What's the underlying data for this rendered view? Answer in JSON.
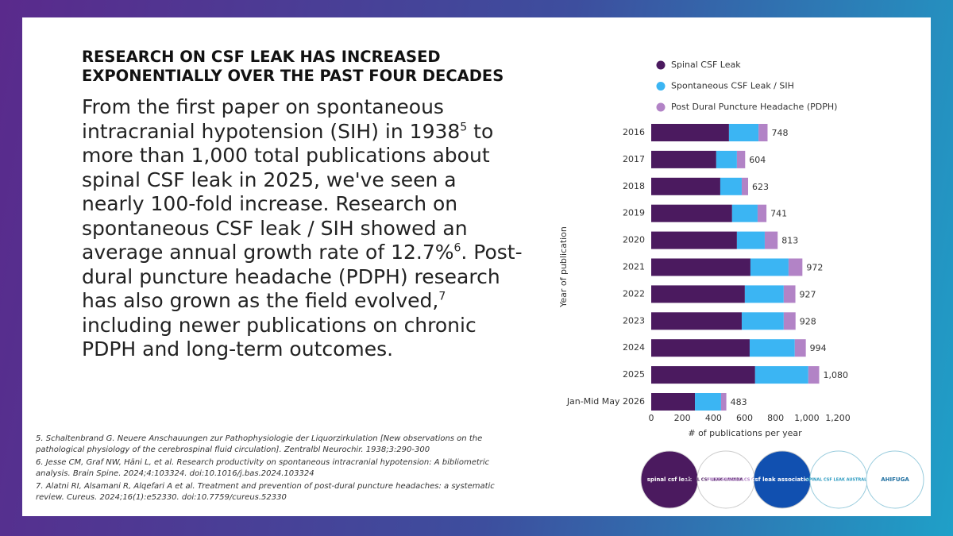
{
  "header": {
    "title": "RESEARCH ON CSF LEAK HAS INCREASED EXPONENTIALLY OVER THE PAST FOUR DECADES"
  },
  "body": [
    "From the first paper on spontaneous intracranial hypotension (SIH) in 1938",
    "5",
    " to more than 1,000 total publications about spinal CSF leak in 2025, we've seen a nearly 100-fold increase. Research on spontaneous CSF leak / SIH showed an average annual growth rate of 12.7%",
    "6",
    ". Post-dural puncture headache (PDPH) research has also grown as the field evolved,",
    "7",
    " including newer publications on chronic PDPH and long-term outcomes."
  ],
  "footnotes": [
    "5. Schaltenbrand G. Neuere Anschauungen zur Pathophysiologie der Liquorzirkulation [New observations on the pathological physiology of the cerebrospinal fluid circulation]. Zentralbl Neurochir. 1938;3:290-300",
    "6. Jesse CM, Graf NW, Häni L, et al. Research productivity on spontaneous intracranial hypotension: A bibliometric analysis. Brain Spine. 2024;4:103324. doi:10.1016/j.bas.2024.103324",
    "7. Alatni RI, Alsamani R, Alqefari A et al. Treatment and prevention of post-dural puncture headaches: a systematic review. Cureus. 2024;16(1):e52330. doi:10.7759/cureus.52330"
  ],
  "logos": [
    "spinal csf leak",
    "SPINAL CSF LEAK CANADA",
    "FUITE SPINALE LCS CANADA",
    "csf leak association",
    "SPINAL CSF LEAK AUSTRALIA",
    "AHIFUGA"
  ],
  "chart_data": {
    "type": "stacked-bar-horizontal",
    "x_label": "# of publications per year",
    "y_label": "Year of publication",
    "categories": [
      "2016",
      "2017",
      "2018",
      "2019",
      "2020",
      "2021",
      "2022",
      "2023",
      "2024",
      "2025",
      "Jan-Mid May 2026"
    ],
    "series": [
      {
        "name": "Spinal CSF Leak",
        "color": "#4b1a5f",
        "values": [
          500,
          418,
          444,
          520,
          551,
          638,
          602,
          582,
          633,
          668,
          281
        ]
      },
      {
        "name": "Spontaneous CSF Leak / SIH",
        "color": "#3bb5f3",
        "values": [
          190,
          133,
          138,
          164,
          179,
          245,
          250,
          270,
          290,
          342,
          168
        ]
      },
      {
        "name": "Post Dural Puncture Headache (PDPH)",
        "color": "#b283c6",
        "values": [
          58,
          53,
          41,
          57,
          83,
          89,
          75,
          76,
          71,
          70,
          34
        ]
      }
    ],
    "totals": {
      "values": [
        748,
        604,
        623,
        741,
        813,
        972,
        927,
        928,
        994,
        1080,
        483
      ],
      "value_labels": [
        "748",
        "604",
        "623",
        "741",
        "813",
        "972",
        "927",
        "928",
        "994",
        "1,080",
        "483"
      ]
    },
    "xlim": [
      0,
      1200
    ],
    "xticks": [
      0,
      200,
      400,
      600,
      800,
      {
        "value": 1000,
        "label": "1,000"
      },
      {
        "value": 1200,
        "label": "1,200"
      }
    ],
    "legend": "top-left"
  }
}
